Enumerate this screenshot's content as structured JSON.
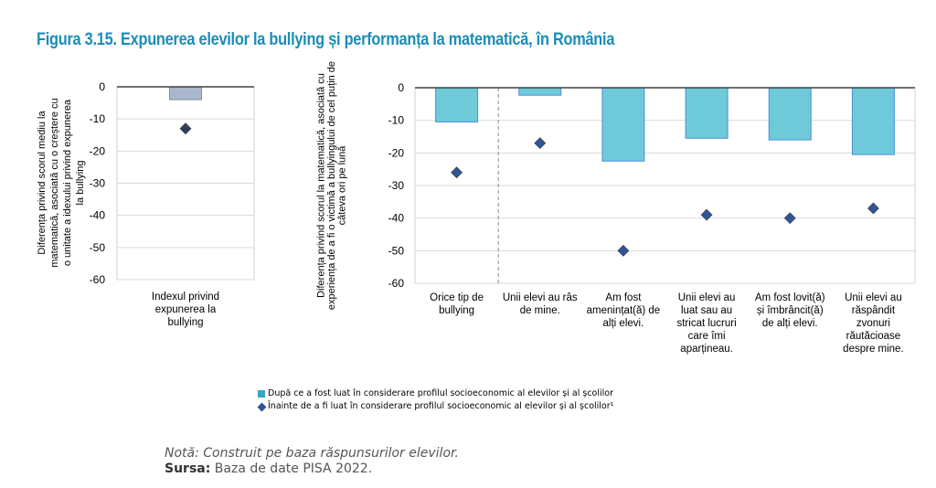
{
  "title": "Figura 3.15. Expunerea elevilor la bullying și performanța la matematică, în România",
  "colors": {
    "title": "#1a8cb8",
    "left_bar": "#aab6cc",
    "right_bar": "#6ecad8",
    "right_bar_border": "#4a90d9",
    "diamond_left": "#2e3f58",
    "diamond_right": "#2f5597",
    "legend_square": "#3aa6c0"
  },
  "chart_data": [
    {
      "type": "bar",
      "name": "left-chart",
      "categories": [
        "Indexul privind expunerea la bullying"
      ],
      "category_lines": [
        [
          "Indexul privind",
          "expunerea la",
          "bullying"
        ]
      ],
      "series": [
        {
          "name": "După ce a fost luat în considerare profilul socioeconomic al elevilor și al școlilor",
          "kind": "bar",
          "values": [
            -4
          ]
        },
        {
          "name": "Înainte de a fi luat în considerare profilul socioeconomic al elevilor și al școlilor",
          "kind": "diamond",
          "values": [
            -13
          ]
        }
      ],
      "ylabel_lines": [
        "Diferența privind scorul mediu la",
        "matematică, asociată cu o creștere cu",
        "o unitate a idexului privind expunerea",
        "la bullying"
      ],
      "yticks": [
        0,
        -10,
        -20,
        -30,
        -40,
        -50,
        -60
      ],
      "ylim": [
        -60,
        0
      ],
      "grid": true
    },
    {
      "type": "bar",
      "name": "right-chart",
      "categories": [
        "Orice tip de bullying",
        "Unii elevi au râs de mine.",
        "Am fost amenințat(ă) de alți elevi.",
        "Unii elevi au luat sau au stricat lucruri care îmi aparțineau.",
        "Am fost lovit(ă) și îmbrâncit(ă) de alți elevi.",
        "Unii elevi au răspândit zvonuri răutăcioase despre mine."
      ],
      "category_lines": [
        [
          "Orice tip de",
          "bullying"
        ],
        [
          "Unii elevi au râs",
          "de mine."
        ],
        [
          "Am fost",
          "amenințat(ă) de",
          "alți elevi."
        ],
        [
          "Unii elevi au",
          "luat sau au",
          "stricat lucruri",
          "care îmi",
          "aparțineau."
        ],
        [
          "Am fost lovit(ă)",
          "și îmbrâncit(ă)",
          "de alți elevi."
        ],
        [
          "Unii elevi au",
          "răspândit",
          "zvonuri",
          "răutăcioase",
          "despre mine."
        ]
      ],
      "series": [
        {
          "name": "După ce a fost luat în considerare profilul socioeconomic al elevilor și al școlilor",
          "kind": "bar",
          "values": [
            -10.5,
            -2.3,
            -22.5,
            -15.5,
            -16,
            -20.5
          ]
        },
        {
          "name": "Înainte de a fi luat în considerare profilul socioeconomic al elevilor și al școlilor",
          "kind": "diamond",
          "values": [
            -26,
            -17,
            -50,
            -39,
            -40,
            -37
          ]
        }
      ],
      "ylabel_lines": [
        "Diferența privind scorul la matematică, asociată cu",
        "experiența de a fi o victimă a bullyingului de cel puțin de",
        "câteva ori pe lună"
      ],
      "yticks": [
        0,
        -10,
        -20,
        -30,
        -40,
        -50,
        -60
      ],
      "ylim": [
        -60,
        0
      ],
      "grid": true,
      "separator_after_category": 0
    }
  ],
  "legend": {
    "items": [
      {
        "label": "După ce a fost luat în considerare profilul socioeconomic al elevilor și al școlilor",
        "marker": "square"
      },
      {
        "label": "Înainte de a fi luat în considerare profilul socioeconomic al elevilor și al școlilor¹",
        "marker": "diamond"
      }
    ],
    "placement": "bottom"
  },
  "note": {
    "label": "Notă:",
    "text": " Construit pe baza răspunsurilor elevilor.",
    "source_label": "Sursa:",
    "source_text": " Baza de date PISA 2022."
  }
}
